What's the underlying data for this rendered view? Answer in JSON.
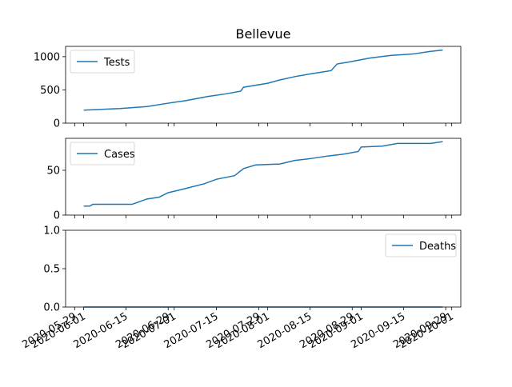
{
  "chart_data": [
    {
      "type": "line",
      "title": "Bellevue",
      "xlim": [
        "2020-05-26",
        "2020-10-04"
      ],
      "xticks": [
        "2020-05-29",
        "2020-06-01",
        "2020-06-15",
        "2020-06-29",
        "2020-07-01",
        "2020-07-15",
        "2020-07-29",
        "2020-08-01",
        "2020-08-15",
        "2020-08-29",
        "2020-09-01",
        "2020-09-15",
        "2020-09-29",
        "2020-10-01"
      ],
      "ylim": [
        0,
        1155
      ],
      "yticks": [
        0,
        500,
        1000
      ],
      "legend": "upper left",
      "series": [
        {
          "name": "Tests",
          "color": "#1f77b4",
          "x": [
            "2020-06-01",
            "2020-06-13",
            "2020-06-22",
            "2020-06-29",
            "2020-07-05",
            "2020-07-12",
            "2020-07-18",
            "2020-07-23",
            "2020-07-24",
            "2020-08-01",
            "2020-08-05",
            "2020-08-10",
            "2020-08-15",
            "2020-08-22",
            "2020-08-24",
            "2020-08-28",
            "2020-09-04",
            "2020-09-11",
            "2020-09-18",
            "2020-09-24",
            "2020-09-28"
          ],
          "values": [
            195,
            220,
            250,
            300,
            340,
            400,
            440,
            480,
            540,
            600,
            650,
            700,
            740,
            790,
            890,
            920,
            980,
            1020,
            1040,
            1080,
            1100
          ]
        }
      ]
    },
    {
      "type": "line",
      "xlim": [
        "2020-05-26",
        "2020-10-04"
      ],
      "xticks": [
        "2020-05-29",
        "2020-06-01",
        "2020-06-15",
        "2020-06-29",
        "2020-07-01",
        "2020-07-15",
        "2020-07-29",
        "2020-08-01",
        "2020-08-15",
        "2020-08-29",
        "2020-09-01",
        "2020-09-15",
        "2020-09-29",
        "2020-10-01"
      ],
      "ylim": [
        0,
        85.7
      ],
      "yticks": [
        0,
        50
      ],
      "legend": "upper left",
      "series": [
        {
          "name": "Cases",
          "color": "#1f77b4",
          "x": [
            "2020-06-01",
            "2020-06-03",
            "2020-06-04",
            "2020-06-17",
            "2020-06-22",
            "2020-06-26",
            "2020-06-29",
            "2020-07-04",
            "2020-07-11",
            "2020-07-15",
            "2020-07-21",
            "2020-07-24",
            "2020-07-28",
            "2020-08-05",
            "2020-08-10",
            "2020-08-15",
            "2020-08-21",
            "2020-08-26",
            "2020-08-31",
            "2020-09-01",
            "2020-09-08",
            "2020-09-13",
            "2020-09-24",
            "2020-09-28"
          ],
          "values": [
            10,
            10,
            12,
            12,
            18,
            20,
            25,
            29,
            35,
            40,
            44,
            52,
            56,
            57,
            61,
            63,
            66,
            68,
            71,
            76,
            77,
            80,
            80,
            82
          ]
        }
      ]
    },
    {
      "type": "line",
      "xlim": [
        "2020-05-26",
        "2020-10-04"
      ],
      "xticks": [
        "2020-05-29",
        "2020-06-01",
        "2020-06-15",
        "2020-06-29",
        "2020-07-01",
        "2020-07-15",
        "2020-07-29",
        "2020-08-01",
        "2020-08-15",
        "2020-08-29",
        "2020-09-01",
        "2020-09-15",
        "2020-09-29",
        "2020-10-01"
      ],
      "ylim": [
        0,
        1
      ],
      "yticks": [
        {
          "value": 0,
          "label": "0.0"
        },
        {
          "value": 0.5,
          "label": "0.5"
        },
        {
          "value": 1,
          "label": "1.0"
        }
      ],
      "legend": "upper right",
      "series": [
        {
          "name": "Deaths",
          "color": "#1f77b4",
          "x": [
            "2020-06-01",
            "2020-09-28"
          ],
          "values": [
            0,
            0
          ]
        }
      ]
    }
  ]
}
